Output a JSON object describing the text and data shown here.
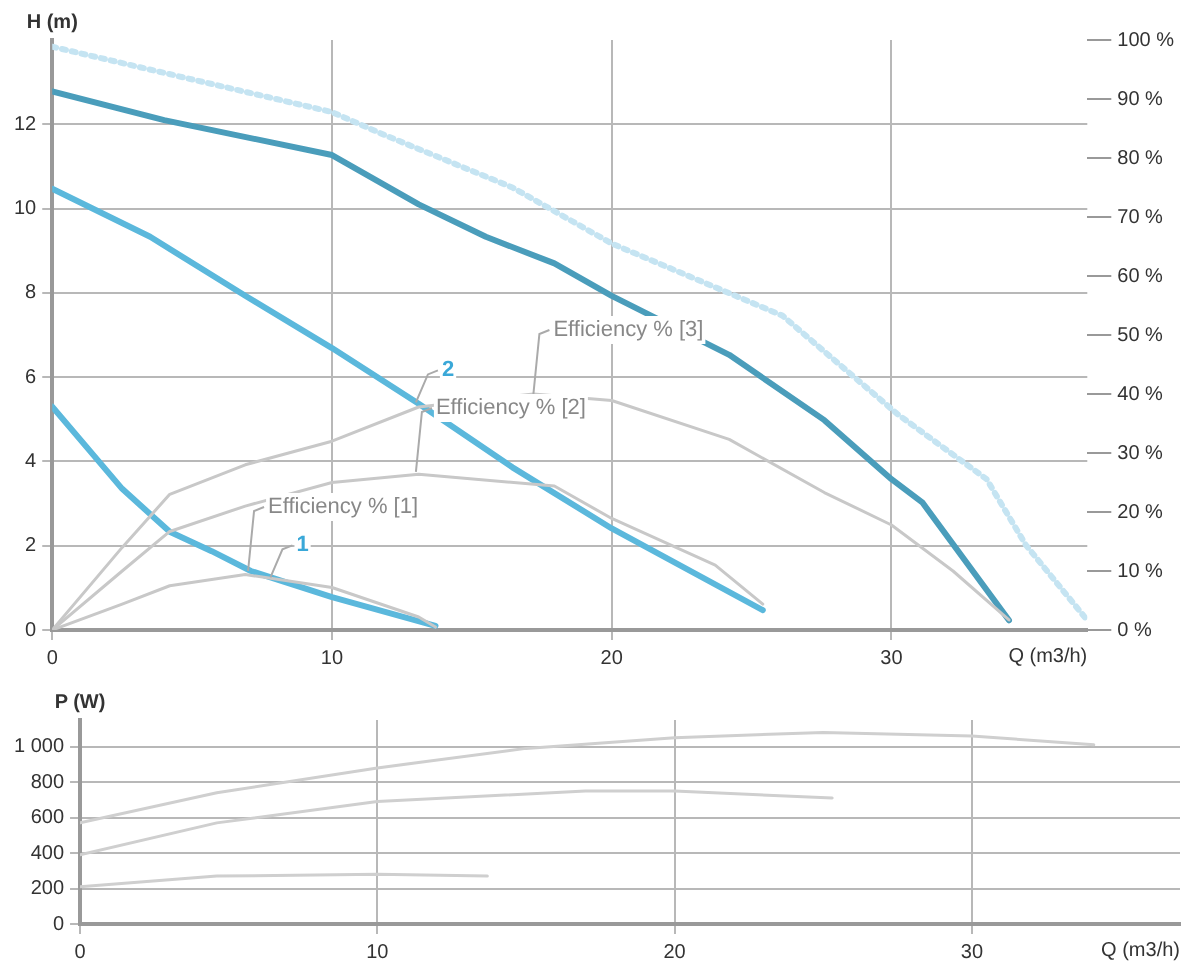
{
  "chart_data": [
    {
      "type": "line",
      "ylabel": "H (m)",
      "xlabel": "Q (m3/h)",
      "xlim": [
        0,
        37
      ],
      "xticks": [
        0,
        10,
        20,
        30
      ],
      "ylim": [
        0,
        14
      ],
      "yticks": [
        0,
        2,
        4,
        6,
        8,
        10,
        12
      ],
      "y2lim": [
        0,
        100
      ],
      "y2ticks": [
        {
          "value": 0,
          "label": "0 %"
        },
        {
          "value": 10,
          "label": "10 %"
        },
        {
          "value": 20,
          "label": "20 %"
        },
        {
          "value": 30,
          "label": "30 %"
        },
        {
          "value": 40,
          "label": "40 %"
        },
        {
          "value": 50,
          "label": "50 %"
        },
        {
          "value": 60,
          "label": "60 %"
        },
        {
          "value": 70,
          "label": "70 %"
        },
        {
          "value": 80,
          "label": "80 %"
        },
        {
          "value": 90,
          "label": "90 %"
        },
        {
          "value": 100,
          "label": "100 %"
        }
      ],
      "grid": true,
      "marker": "none",
      "legend": false,
      "series": [
        {
          "color": "#c5e4f2",
          "line_style": "dotted",
          "x": [
            0,
            10,
            11.9,
            16.45,
            20,
            26.1,
            30.2,
            33.4,
            34.8,
            37
          ],
          "values": [
            13.84,
            12.29,
            11.74,
            10.5,
            9.17,
            7.46,
            5.13,
            3.58,
            2.02,
            0.23
          ]
        },
        {
          "color": "#c8c8c8",
          "axis": "y2",
          "x": [
            0,
            2.5,
            4.2,
            6.9,
            10,
            13.1,
            17.2,
            20,
            24.2,
            27.6,
            30,
            32.2,
            34.2
          ],
          "values": [
            0,
            14,
            23,
            28,
            32,
            37.8,
            40,
            38.9,
            32.3,
            23.3,
            17.8,
            10,
            1.7
          ]
        },
        {
          "color": "#c8c8c8",
          "axis": "y2",
          "x": [
            0,
            2.5,
            4.2,
            6.9,
            10,
            13.1,
            17.95,
            20,
            23.7,
            25.4
          ],
          "values": [
            0,
            10,
            16.7,
            21,
            25,
            26.4,
            24.4,
            18.9,
            11,
            4.4
          ]
        },
        {
          "color": "#c8c8c8",
          "axis": "y2",
          "x": [
            0,
            2.5,
            4.2,
            6.9,
            10,
            13.1,
            13.7
          ],
          "values": [
            0,
            4.4,
            7.5,
            9.4,
            7.2,
            2.2,
            0.5
          ]
        },
        {
          "color": "#4a9dbb",
          "x": [
            0,
            4,
            10,
            13.1,
            15.5,
            17.95,
            20,
            24.2,
            27.6,
            30,
            31.1,
            34.2
          ],
          "values": [
            12.78,
            12.1,
            11.27,
            10.1,
            9.33,
            8.7,
            7.93,
            6.53,
            4.98,
            3.58,
            3.03,
            0.23
          ]
        },
        {
          "color": "#5bb8dc",
          "x": [
            0,
            3.5,
            6.9,
            10,
            13.1,
            16.45,
            20,
            25.4
          ],
          "values": [
            10.47,
            9.33,
            7.93,
            6.69,
            5.37,
            3.86,
            2.41,
            0.47
          ]
        },
        {
          "color": "#5bb8dc",
          "x": [
            0,
            2.5,
            4.2,
            5.7,
            7.1,
            10,
            13.7
          ],
          "values": [
            5.3,
            3.35,
            2.33,
            1.87,
            1.4,
            0.78,
            0.1
          ]
        }
      ],
      "annotations": [
        {
          "text": "1",
          "x": 7.8,
          "y": 1.25
        },
        {
          "text": "2",
          "x": 13,
          "y": 5.4
        },
        {
          "text": "Efficiency % [1]",
          "x": 7,
          "y": 1.4
        },
        {
          "text": "Efficiency % [2]",
          "x": 13,
          "y": 3.75
        },
        {
          "text": "Efficiency % [3]",
          "x": 17.2,
          "y": 5.6
        }
      ]
    },
    {
      "type": "line",
      "ylabel": "P (W)",
      "xlabel": "Q (m3/h)",
      "xlim": [
        0,
        37
      ],
      "xticks": [
        0,
        10,
        20,
        30
      ],
      "ylim": [
        0,
        1150
      ],
      "yticks": [
        0,
        200,
        400,
        600,
        800,
        {
          "value": 1000,
          "label": "1 000"
        }
      ],
      "grid": true,
      "marker": "none",
      "legend": false,
      "series": [
        {
          "color": "#cfcfcf",
          "x": [
            0,
            4.6,
            10,
            15,
            20,
            25,
            30,
            34.1
          ],
          "values": [
            570,
            740,
            880,
            990,
            1050,
            1080,
            1060,
            1010
          ]
        },
        {
          "color": "#cfcfcf",
          "x": [
            0,
            4.6,
            10,
            17,
            20,
            25.3
          ],
          "values": [
            390,
            570,
            690,
            750,
            750,
            710
          ]
        },
        {
          "color": "#cfcfcf",
          "x": [
            0,
            4.6,
            10,
            13.7
          ],
          "values": [
            210,
            270,
            280,
            270
          ]
        }
      ]
    }
  ]
}
